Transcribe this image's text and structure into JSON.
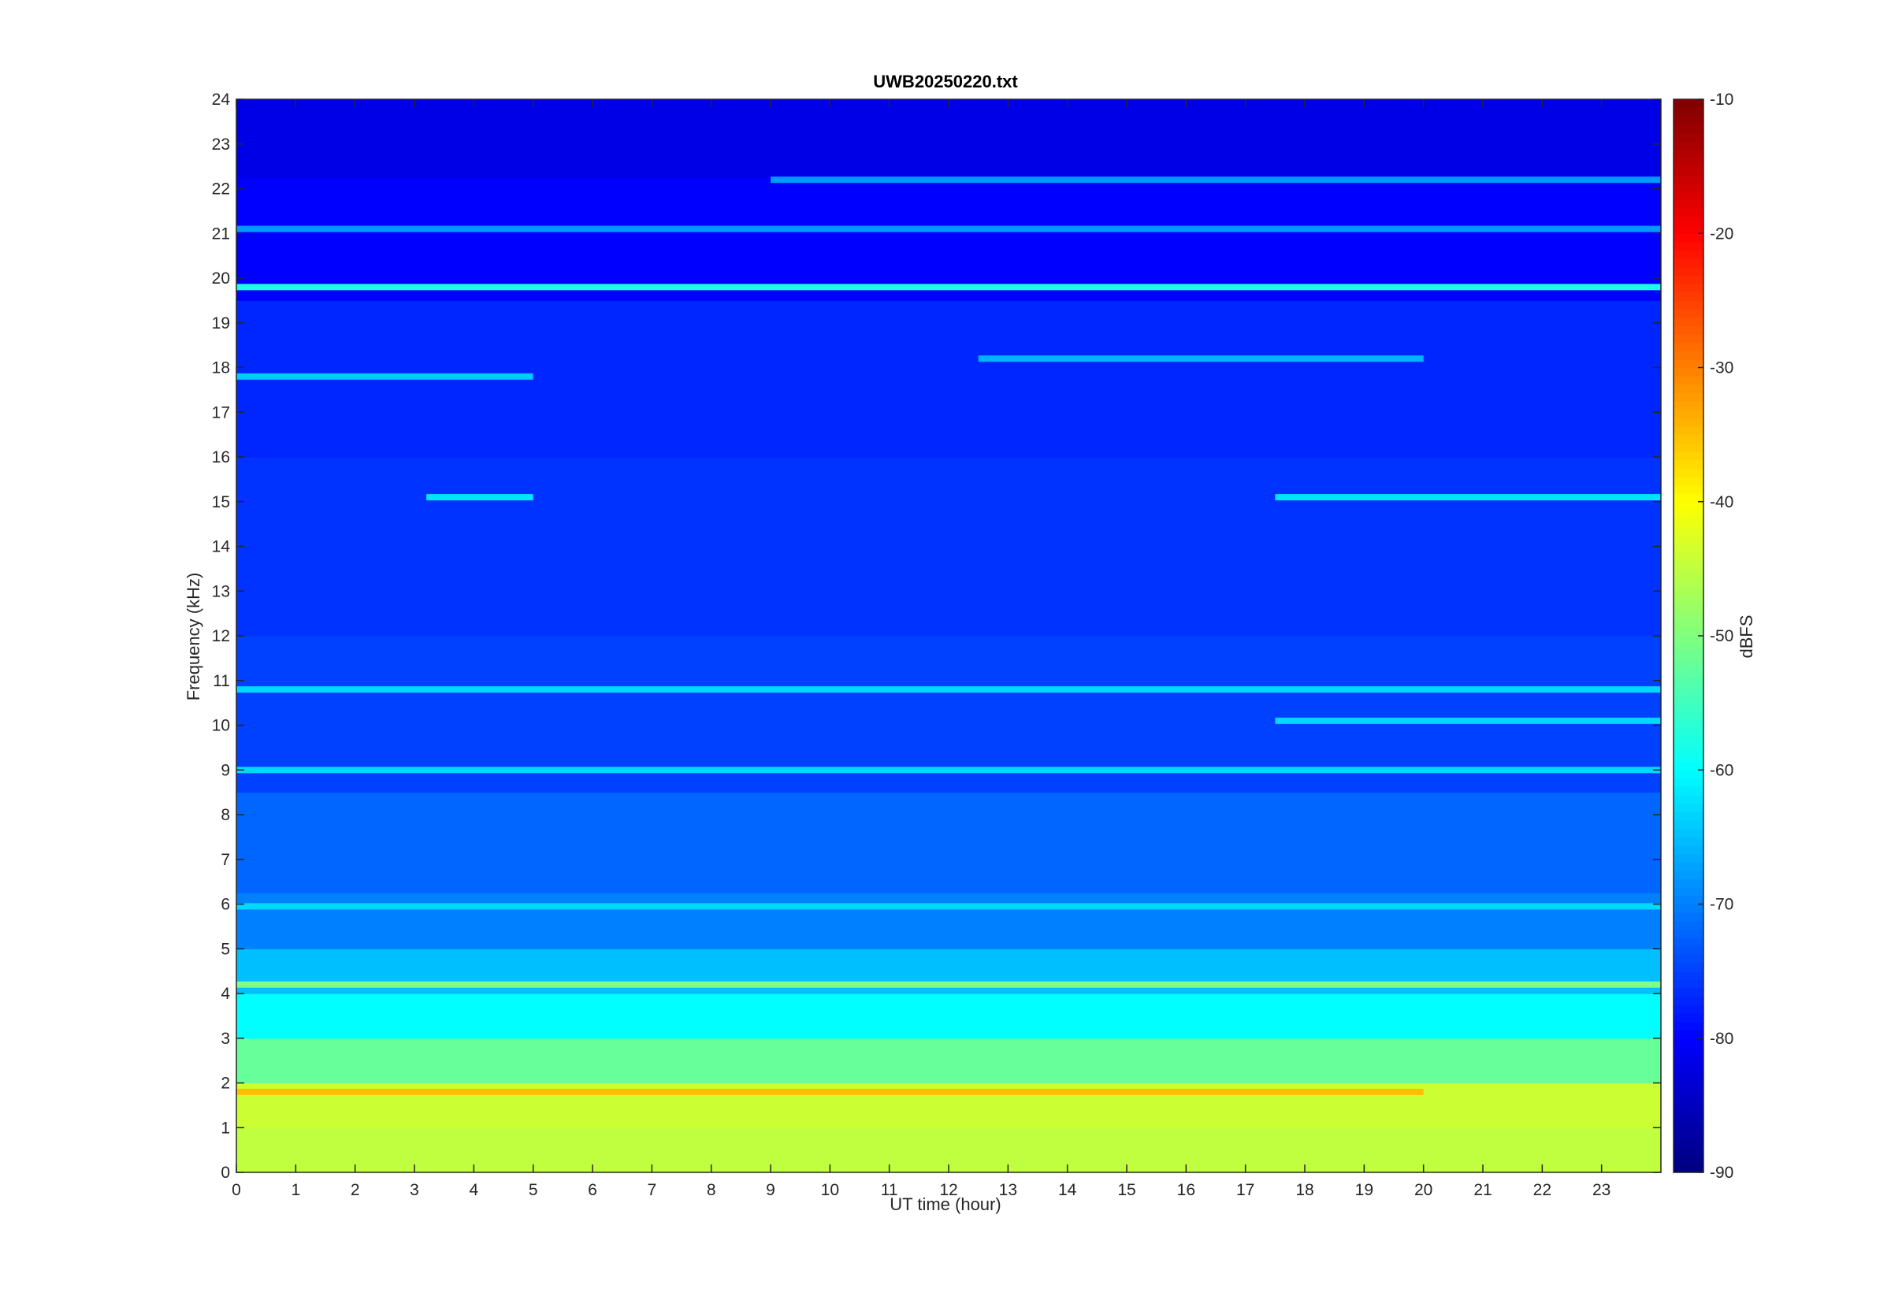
{
  "chart_data": {
    "type": "heatmap",
    "title": "UWB20250220.txt",
    "xlabel": "UT time (hour)",
    "ylabel": "Frequency (kHz)",
    "xlim": [
      0,
      24
    ],
    "ylim": [
      0,
      24
    ],
    "x_ticks": [
      0,
      1,
      2,
      3,
      4,
      5,
      6,
      7,
      8,
      9,
      10,
      11,
      12,
      13,
      14,
      15,
      16,
      17,
      18,
      19,
      20,
      21,
      22,
      23
    ],
    "y_ticks": [
      0,
      1,
      2,
      3,
      4,
      5,
      6,
      7,
      8,
      9,
      10,
      11,
      12,
      13,
      14,
      15,
      16,
      17,
      18,
      19,
      20,
      21,
      22,
      23,
      24
    ],
    "colorbar": {
      "label": "dBFS",
      "range": [
        -90,
        -10
      ],
      "ticks": [
        -90,
        -80,
        -70,
        -60,
        -50,
        -40,
        -30,
        -20,
        -10
      ],
      "colormap": "jet"
    },
    "background_level_by_frequency": [
      {
        "freq_khz": 0.5,
        "dbfs": -45
      },
      {
        "freq_khz": 1.5,
        "dbfs": -44
      },
      {
        "freq_khz": 2.5,
        "dbfs": -52
      },
      {
        "freq_khz": 3.5,
        "dbfs": -60
      },
      {
        "freq_khz": 4.5,
        "dbfs": -65
      },
      {
        "freq_khz": 5.5,
        "dbfs": -70
      },
      {
        "freq_khz": 7.0,
        "dbfs": -72
      },
      {
        "freq_khz": 10.0,
        "dbfs": -75
      },
      {
        "freq_khz": 14.0,
        "dbfs": -76
      },
      {
        "freq_khz": 18.0,
        "dbfs": -77
      },
      {
        "freq_khz": 21.0,
        "dbfs": -80
      },
      {
        "freq_khz": 23.5,
        "dbfs": -82
      }
    ],
    "horizontal_bands": [
      {
        "freq_khz": 19.8,
        "dbfs": -58,
        "start_hour": 0,
        "end_hour": 24
      },
      {
        "freq_khz": 4.2,
        "dbfs": -50,
        "start_hour": 0,
        "end_hour": 24
      },
      {
        "freq_khz": 1.8,
        "dbfs": -35,
        "start_hour": 0,
        "end_hour": 20
      },
      {
        "freq_khz": 9.0,
        "dbfs": -63,
        "start_hour": 0,
        "end_hour": 24
      },
      {
        "freq_khz": 10.8,
        "dbfs": -63,
        "start_hour": 0,
        "end_hour": 24
      },
      {
        "freq_khz": 5.95,
        "dbfs": -63,
        "start_hour": 0,
        "end_hour": 24
      },
      {
        "freq_khz": 18.2,
        "dbfs": -66,
        "start_hour": 12.5,
        "end_hour": 20
      },
      {
        "freq_khz": 22.2,
        "dbfs": -68,
        "start_hour": 9,
        "end_hour": 24
      },
      {
        "freq_khz": 21.1,
        "dbfs": -68,
        "start_hour": 0,
        "end_hour": 24
      },
      {
        "freq_khz": 15.1,
        "dbfs": -62,
        "start_hour": 3.2,
        "end_hour": 5
      },
      {
        "freq_khz": 15.1,
        "dbfs": -62,
        "start_hour": 17.5,
        "end_hour": 24
      },
      {
        "freq_khz": 10.1,
        "dbfs": -63,
        "start_hour": 17.5,
        "end_hour": 24
      },
      {
        "freq_khz": 17.8,
        "dbfs": -64,
        "start_hour": 0,
        "end_hour": 5
      }
    ]
  }
}
